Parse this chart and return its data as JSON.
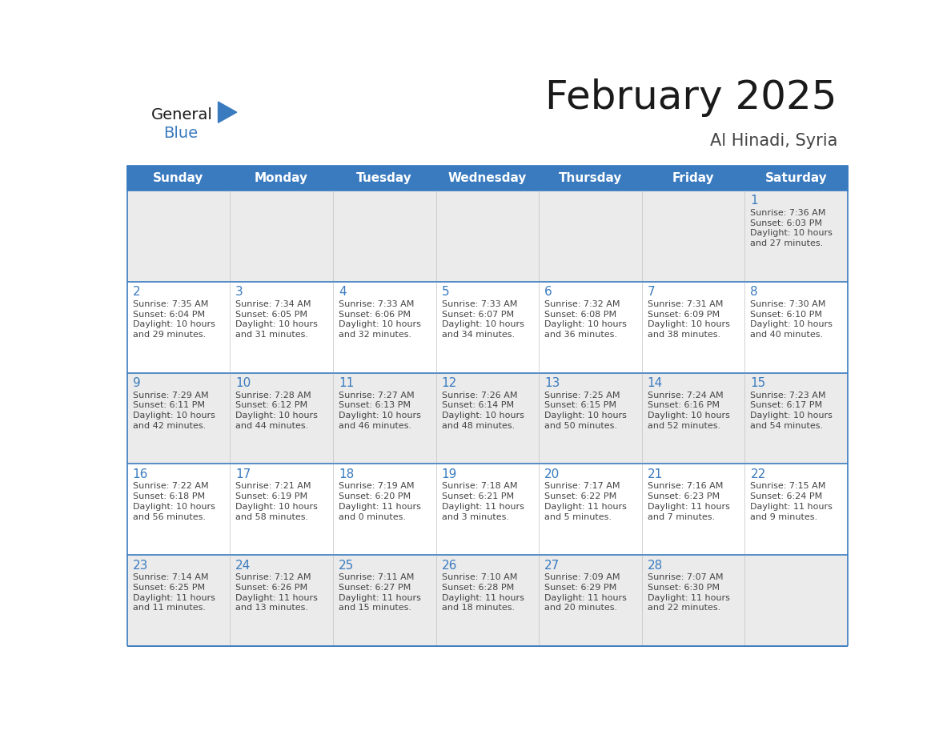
{
  "title": "February 2025",
  "subtitle": "Al Hinadi, Syria",
  "header_bg": "#3a7bbf",
  "header_text_color": "#ffffff",
  "row_bg_odd": "#ebebeb",
  "row_bg_even": "#ffffff",
  "border_color": "#3a7bbf",
  "day_names": [
    "Sunday",
    "Monday",
    "Tuesday",
    "Wednesday",
    "Thursday",
    "Friday",
    "Saturday"
  ],
  "title_color": "#1a1a1a",
  "subtitle_color": "#444444",
  "day_number_color": "#3a7bbf",
  "text_color": "#444444",
  "logo_general_color": "#1a1a1a",
  "logo_blue_color": "#3a7bbf",
  "calendar_data": [
    [
      null,
      null,
      null,
      null,
      null,
      null,
      {
        "day": "1",
        "sunrise": "7:36 AM",
        "sunset": "6:03 PM",
        "daylight_line1": "Daylight: 10 hours",
        "daylight_line2": "and 27 minutes."
      }
    ],
    [
      {
        "day": "2",
        "sunrise": "7:35 AM",
        "sunset": "6:04 PM",
        "daylight_line1": "Daylight: 10 hours",
        "daylight_line2": "and 29 minutes."
      },
      {
        "day": "3",
        "sunrise": "7:34 AM",
        "sunset": "6:05 PM",
        "daylight_line1": "Daylight: 10 hours",
        "daylight_line2": "and 31 minutes."
      },
      {
        "day": "4",
        "sunrise": "7:33 AM",
        "sunset": "6:06 PM",
        "daylight_line1": "Daylight: 10 hours",
        "daylight_line2": "and 32 minutes."
      },
      {
        "day": "5",
        "sunrise": "7:33 AM",
        "sunset": "6:07 PM",
        "daylight_line1": "Daylight: 10 hours",
        "daylight_line2": "and 34 minutes."
      },
      {
        "day": "6",
        "sunrise": "7:32 AM",
        "sunset": "6:08 PM",
        "daylight_line1": "Daylight: 10 hours",
        "daylight_line2": "and 36 minutes."
      },
      {
        "day": "7",
        "sunrise": "7:31 AM",
        "sunset": "6:09 PM",
        "daylight_line1": "Daylight: 10 hours",
        "daylight_line2": "and 38 minutes."
      },
      {
        "day": "8",
        "sunrise": "7:30 AM",
        "sunset": "6:10 PM",
        "daylight_line1": "Daylight: 10 hours",
        "daylight_line2": "and 40 minutes."
      }
    ],
    [
      {
        "day": "9",
        "sunrise": "7:29 AM",
        "sunset": "6:11 PM",
        "daylight_line1": "Daylight: 10 hours",
        "daylight_line2": "and 42 minutes."
      },
      {
        "day": "10",
        "sunrise": "7:28 AM",
        "sunset": "6:12 PM",
        "daylight_line1": "Daylight: 10 hours",
        "daylight_line2": "and 44 minutes."
      },
      {
        "day": "11",
        "sunrise": "7:27 AM",
        "sunset": "6:13 PM",
        "daylight_line1": "Daylight: 10 hours",
        "daylight_line2": "and 46 minutes."
      },
      {
        "day": "12",
        "sunrise": "7:26 AM",
        "sunset": "6:14 PM",
        "daylight_line1": "Daylight: 10 hours",
        "daylight_line2": "and 48 minutes."
      },
      {
        "day": "13",
        "sunrise": "7:25 AM",
        "sunset": "6:15 PM",
        "daylight_line1": "Daylight: 10 hours",
        "daylight_line2": "and 50 minutes."
      },
      {
        "day": "14",
        "sunrise": "7:24 AM",
        "sunset": "6:16 PM",
        "daylight_line1": "Daylight: 10 hours",
        "daylight_line2": "and 52 minutes."
      },
      {
        "day": "15",
        "sunrise": "7:23 AM",
        "sunset": "6:17 PM",
        "daylight_line1": "Daylight: 10 hours",
        "daylight_line2": "and 54 minutes."
      }
    ],
    [
      {
        "day": "16",
        "sunrise": "7:22 AM",
        "sunset": "6:18 PM",
        "daylight_line1": "Daylight: 10 hours",
        "daylight_line2": "and 56 minutes."
      },
      {
        "day": "17",
        "sunrise": "7:21 AM",
        "sunset": "6:19 PM",
        "daylight_line1": "Daylight: 10 hours",
        "daylight_line2": "and 58 minutes."
      },
      {
        "day": "18",
        "sunrise": "7:19 AM",
        "sunset": "6:20 PM",
        "daylight_line1": "Daylight: 11 hours",
        "daylight_line2": "and 0 minutes."
      },
      {
        "day": "19",
        "sunrise": "7:18 AM",
        "sunset": "6:21 PM",
        "daylight_line1": "Daylight: 11 hours",
        "daylight_line2": "and 3 minutes."
      },
      {
        "day": "20",
        "sunrise": "7:17 AM",
        "sunset": "6:22 PM",
        "daylight_line1": "Daylight: 11 hours",
        "daylight_line2": "and 5 minutes."
      },
      {
        "day": "21",
        "sunrise": "7:16 AM",
        "sunset": "6:23 PM",
        "daylight_line1": "Daylight: 11 hours",
        "daylight_line2": "and 7 minutes."
      },
      {
        "day": "22",
        "sunrise": "7:15 AM",
        "sunset": "6:24 PM",
        "daylight_line1": "Daylight: 11 hours",
        "daylight_line2": "and 9 minutes."
      }
    ],
    [
      {
        "day": "23",
        "sunrise": "7:14 AM",
        "sunset": "6:25 PM",
        "daylight_line1": "Daylight: 11 hours",
        "daylight_line2": "and 11 minutes."
      },
      {
        "day": "24",
        "sunrise": "7:12 AM",
        "sunset": "6:26 PM",
        "daylight_line1": "Daylight: 11 hours",
        "daylight_line2": "and 13 minutes."
      },
      {
        "day": "25",
        "sunrise": "7:11 AM",
        "sunset": "6:27 PM",
        "daylight_line1": "Daylight: 11 hours",
        "daylight_line2": "and 15 minutes."
      },
      {
        "day": "26",
        "sunrise": "7:10 AM",
        "sunset": "6:28 PM",
        "daylight_line1": "Daylight: 11 hours",
        "daylight_line2": "and 18 minutes."
      },
      {
        "day": "27",
        "sunrise": "7:09 AM",
        "sunset": "6:29 PM",
        "daylight_line1": "Daylight: 11 hours",
        "daylight_line2": "and 20 minutes."
      },
      {
        "day": "28",
        "sunrise": "7:07 AM",
        "sunset": "6:30 PM",
        "daylight_line1": "Daylight: 11 hours",
        "daylight_line2": "and 22 minutes."
      },
      null
    ]
  ]
}
